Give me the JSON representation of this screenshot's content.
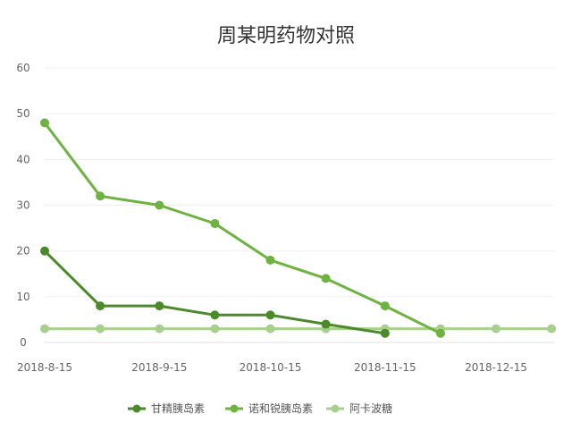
{
  "chart_data": {
    "type": "line",
    "title": "周某明药物对照",
    "xlabel": "",
    "ylabel": "",
    "ylim": [
      0,
      60
    ],
    "y_ticks": [
      0,
      10,
      20,
      30,
      40,
      50,
      60
    ],
    "x_tick_labels": [
      "2018-8-15",
      "2018-9-15",
      "2018-10-15",
      "2018-11-15",
      "2018-12-15"
    ],
    "x_tick_dates": [
      "2018-08-15",
      "2018-09-15",
      "2018-10-15",
      "2018-11-15",
      "2018-12-15"
    ],
    "grid": "horizontal",
    "legend_position": "bottom",
    "series": [
      {
        "name": "甘精胰岛素",
        "color": "#4a8a2a",
        "x": [
          "2018-08-15",
          "2018-08-30",
          "2018-09-15",
          "2018-09-30",
          "2018-10-15",
          "2018-10-30",
          "2018-11-15"
        ],
        "values": [
          20,
          8,
          8,
          6,
          6,
          4,
          2
        ]
      },
      {
        "name": "诺和锐胰岛素",
        "color": "#6db33f",
        "x": [
          "2018-08-15",
          "2018-08-30",
          "2018-09-15",
          "2018-09-30",
          "2018-10-15",
          "2018-10-30",
          "2018-11-15",
          "2018-11-30"
        ],
        "values": [
          48,
          32,
          30,
          26,
          18,
          14,
          8,
          2
        ]
      },
      {
        "name": "阿卡波糖",
        "color": "#a8d08d",
        "x": [
          "2018-08-15",
          "2018-08-30",
          "2018-09-15",
          "2018-09-30",
          "2018-10-15",
          "2018-10-30",
          "2018-11-15",
          "2018-11-30",
          "2018-12-15",
          "2018-12-30"
        ],
        "values": [
          3,
          3,
          3,
          3,
          3,
          3,
          3,
          3,
          3,
          3
        ]
      }
    ]
  }
}
